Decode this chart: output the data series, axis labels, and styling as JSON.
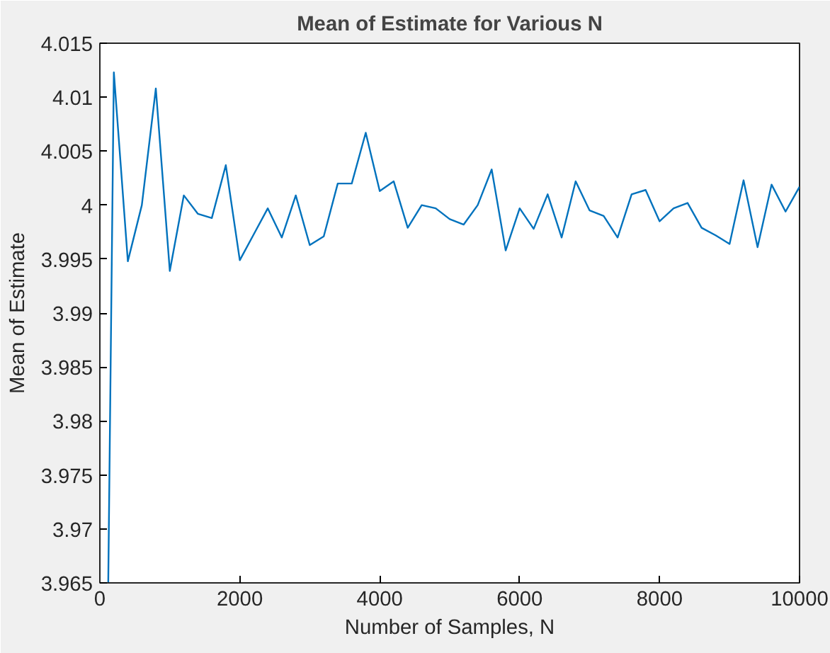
{
  "chart_data": {
    "type": "line",
    "title": "Mean of Estimate for Various N",
    "xlabel": "Number of Samples, N",
    "ylabel": "Mean of Estimate",
    "x": [
      120,
      200,
      400,
      600,
      800,
      1000,
      1200,
      1400,
      1600,
      1800,
      2000,
      2200,
      2400,
      2600,
      2800,
      3000,
      3200,
      3400,
      3600,
      3800,
      4000,
      4200,
      4400,
      4600,
      4800,
      5000,
      5200,
      5400,
      5600,
      5800,
      6000,
      6200,
      6400,
      6600,
      6800,
      7000,
      7200,
      7400,
      7600,
      7800,
      8000,
      8200,
      8400,
      8600,
      8800,
      9000,
      9200,
      9400,
      9600,
      9800,
      10000
    ],
    "series": [
      {
        "color": "#0072bd",
        "values": [
          3.965,
          4.0123,
          3.9948,
          4.0,
          4.0108,
          3.9939,
          4.0009,
          3.9992,
          3.9988,
          4.0037,
          3.9949,
          3.9973,
          3.9997,
          3.997,
          4.0009,
          3.9963,
          3.9971,
          4.002,
          4.002,
          4.0067,
          4.0013,
          4.0022,
          3.9979,
          4.0,
          3.9997,
          3.9987,
          3.9982,
          4.0,
          4.0033,
          3.9958,
          3.9997,
          3.9978,
          4.001,
          3.997,
          4.0022,
          3.9995,
          3.999,
          3.997,
          4.001,
          4.0014,
          3.9985,
          3.9997,
          4.0002,
          3.9979,
          3.9972,
          3.9964,
          4.0023,
          3.9961,
          4.0019,
          3.9994,
          4.0017
        ]
      }
    ],
    "xlim": [
      0,
      10000
    ],
    "ylim": [
      3.965,
      4.015
    ],
    "xticks": [
      0,
      2000,
      4000,
      6000,
      8000,
      10000
    ],
    "yticks": [
      3.965,
      3.97,
      3.975,
      3.98,
      3.985,
      3.99,
      3.995,
      4,
      4.005,
      4.01,
      4.015
    ],
    "grid": false,
    "marker": "none",
    "line_style": "solid"
  }
}
